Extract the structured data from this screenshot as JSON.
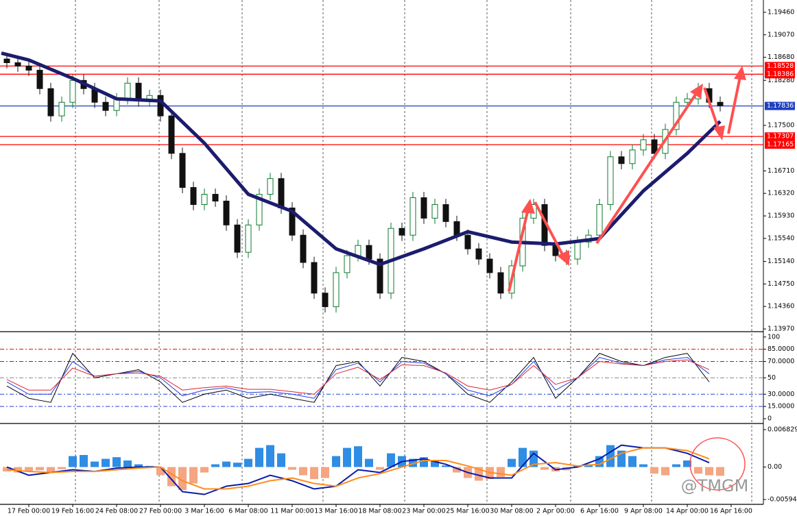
{
  "chart_data": [
    {
      "type": "candlestick",
      "xlim": [
        -10.5,
        267.75
      ],
      "ylim": [
        1.13935,
        1.19673
      ],
      "yticks": [
        {
          "value": 1.1946,
          "label": "1.19460"
        },
        {
          "value": 1.1907,
          "label": "1.19070"
        },
        {
          "value": 1.1868,
          "label": "1.18680"
        },
        {
          "value": 1.1828,
          "label": "1.18280"
        },
        {
          "value": 1.175,
          "label": "1.17500"
        },
        {
          "value": 1.1671,
          "label": "1.16710"
        },
        {
          "value": 1.1632,
          "label": "1.16320"
        },
        {
          "value": 1.1593,
          "label": "1.15930"
        },
        {
          "value": 1.1554,
          "label": "1.15540"
        },
        {
          "value": 1.1514,
          "label": "1.15140"
        },
        {
          "value": 1.1475,
          "label": "1.14750"
        },
        {
          "value": 1.1436,
          "label": "1.14360"
        },
        {
          "value": 1.1397,
          "label": "1.13970"
        }
      ],
      "up_color": "#0a7a2a",
      "down_color": "#111111",
      "x": [
        -8,
        -4,
        0,
        4,
        8,
        12,
        16,
        20,
        24,
        28,
        32,
        36,
        40,
        44,
        48,
        52,
        56,
        60,
        64,
        68,
        72,
        76,
        80,
        84,
        88,
        92,
        96,
        100,
        104,
        108,
        112,
        116,
        120,
        124,
        128,
        132,
        136,
        140,
        144,
        148,
        152,
        156,
        160,
        164,
        168,
        172,
        176,
        180,
        184,
        188,
        192,
        196,
        200,
        204,
        208,
        212,
        216,
        220,
        224,
        228,
        232,
        236,
        240,
        244,
        248,
        252
      ],
      "open": [
        1.1865,
        1.18586,
        1.18527,
        1.18456,
        1.18137,
        1.17664,
        1.179,
        1.18279,
        1.18137,
        1.179,
        1.17758,
        1.1796,
        1.18231,
        1.17924,
        1.18018,
        1.17664,
        1.17014,
        1.16423,
        1.16127,
        1.16305,
        1.16187,
        1.15773,
        1.153,
        1.15773,
        1.16305,
        1.16577,
        1.16068,
        1.15596,
        1.15123,
        1.14591,
        1.14355,
        1.14946,
        1.15241,
        1.15418,
        1.15182,
        1.14591,
        1.15714,
        1.15596,
        1.16246,
        1.15891,
        1.16127,
        1.15832,
        1.15596,
        1.15359,
        1.15182,
        1.14946,
        1.14591,
        1.15064,
        1.15891,
        1.16127,
        1.15418,
        1.15241,
        1.15182,
        1.15477,
        1.15596,
        1.16127,
        1.16955,
        1.16837,
        1.17073,
        1.1725,
        1.17014,
        1.17428,
        1.179,
        1.1796,
        1.18137,
        1.179
      ],
      "high": [
        1.1875,
        1.18686,
        1.18627,
        1.18556,
        1.18237,
        1.18,
        1.18379,
        1.18379,
        1.18237,
        1.18,
        1.1806,
        1.18331,
        1.18331,
        1.18118,
        1.18118,
        1.17764,
        1.17114,
        1.16523,
        1.16405,
        1.16405,
        1.16287,
        1.15873,
        1.15873,
        1.16405,
        1.16677,
        1.16677,
        1.16168,
        1.15696,
        1.15223,
        1.14691,
        1.15046,
        1.15341,
        1.15518,
        1.15518,
        1.15282,
        1.15814,
        1.15814,
        1.16346,
        1.16346,
        1.16227,
        1.16227,
        1.15932,
        1.15696,
        1.15459,
        1.15282,
        1.15046,
        1.15164,
        1.15991,
        1.16227,
        1.16227,
        1.15518,
        1.15341,
        1.15577,
        1.15696,
        1.16227,
        1.17055,
        1.17055,
        1.17173,
        1.1735,
        1.1735,
        1.17528,
        1.18,
        1.1806,
        1.18237,
        1.18237,
        1.18
      ],
      "low": [
        1.18486,
        1.18427,
        1.18356,
        1.18037,
        1.17564,
        1.17564,
        1.178,
        1.18037,
        1.178,
        1.17658,
        1.17658,
        1.1786,
        1.17824,
        1.17824,
        1.17564,
        1.16914,
        1.16323,
        1.16027,
        1.16027,
        1.16087,
        1.15673,
        1.152,
        1.152,
        1.15673,
        1.16205,
        1.15968,
        1.15496,
        1.15023,
        1.14491,
        1.14255,
        1.14255,
        1.14846,
        1.15141,
        1.15082,
        1.14491,
        1.14491,
        1.15496,
        1.15496,
        1.15791,
        1.15791,
        1.15732,
        1.15496,
        1.15259,
        1.15082,
        1.14846,
        1.14491,
        1.14491,
        1.14964,
        1.15791,
        1.15318,
        1.15141,
        1.15082,
        1.15082,
        1.15377,
        1.15496,
        1.16027,
        1.16737,
        1.16737,
        1.16973,
        1.16914,
        1.16914,
        1.17328,
        1.178,
        1.1786,
        1.178,
        1.17741
      ],
      "close": [
        1.18586,
        1.18527,
        1.18456,
        1.18137,
        1.17664,
        1.179,
        1.18279,
        1.18137,
        1.179,
        1.17758,
        1.1796,
        1.18231,
        1.17924,
        1.18018,
        1.17664,
        1.17014,
        1.16423,
        1.16127,
        1.16305,
        1.16187,
        1.15773,
        1.153,
        1.15773,
        1.16305,
        1.16577,
        1.16068,
        1.15596,
        1.15123,
        1.14591,
        1.14355,
        1.14946,
        1.15241,
        1.15418,
        1.15182,
        1.14591,
        1.15714,
        1.15596,
        1.16246,
        1.15891,
        1.16127,
        1.15832,
        1.15596,
        1.15359,
        1.15182,
        1.14946,
        1.14591,
        1.15064,
        1.15891,
        1.16127,
        1.15418,
        1.15241,
        1.15182,
        1.15477,
        1.15596,
        1.16127,
        1.16955,
        1.16837,
        1.17073,
        1.1725,
        1.17014,
        1.17428,
        1.179,
        1.1796,
        1.18137,
        1.179,
        1.17841
      ],
      "series": [
        {
          "color": "#1c1c6e",
          "x": [
            -10,
            0,
            16,
            32,
            48,
            64,
            80,
            96,
            112,
            128,
            144,
            160,
            176,
            192,
            208,
            224,
            240,
            252
          ],
          "values": [
            1.18751,
            1.18633,
            1.18314,
            1.1796,
            1.17924,
            1.17191,
            1.16305,
            1.16009,
            1.15359,
            1.15088,
            1.15359,
            1.15655,
            1.15477,
            1.15442,
            1.15537,
            1.16364,
            1.17014,
            1.17569
          ]
        }
      ],
      "level_labels": true,
      "levels": [
        {
          "value": 1.18528,
          "color": "#ff0000"
        },
        {
          "value": 1.18386,
          "color": "#ff0000"
        },
        {
          "value": 1.17836,
          "color": "#1f3fbf"
        },
        {
          "value": 1.17307,
          "color": "#ff0000"
        },
        {
          "value": 1.17165,
          "color": "#ff0000"
        }
      ]
    },
    {
      "type": "line",
      "xlim": [
        -10.5,
        267.75
      ],
      "ylim": [
        -5,
        104
      ],
      "yticks": [
        100,
        {
          "value": 85,
          "label": "85.0000"
        },
        {
          "value": 70,
          "label": "70.0000"
        },
        50,
        {
          "value": 30,
          "label": "30.0000"
        },
        {
          "value": 15,
          "label": "15.0000"
        },
        0
      ],
      "x": [
        -8,
        0,
        8,
        16,
        24,
        32,
        40,
        48,
        56,
        64,
        72,
        80,
        88,
        96,
        104,
        112,
        120,
        128,
        136,
        144,
        152,
        160,
        168,
        176,
        184,
        192,
        200,
        208,
        216,
        224,
        232,
        240,
        248
      ],
      "series": [
        {
          "color": "#000000",
          "values": [
            40,
            25,
            20,
            80,
            50,
            55,
            60,
            45,
            20,
            30,
            35,
            25,
            30,
            25,
            20,
            65,
            70,
            40,
            75,
            70,
            55,
            30,
            20,
            45,
            75,
            25,
            50,
            80,
            70,
            65,
            75,
            80,
            45
          ]
        },
        {
          "color": "#1f3fdf",
          "values": [
            45,
            30,
            30,
            70,
            52,
            55,
            58,
            50,
            28,
            35,
            38,
            32,
            33,
            30,
            25,
            60,
            68,
            45,
            70,
            68,
            55,
            35,
            28,
            42,
            70,
            35,
            50,
            75,
            68,
            65,
            72,
            75,
            55
          ]
        },
        {
          "color": "#e0202a",
          "values": [
            48,
            35,
            35,
            62,
            52,
            55,
            56,
            52,
            35,
            38,
            40,
            36,
            36,
            33,
            30,
            55,
            63,
            48,
            66,
            65,
            56,
            40,
            35,
            42,
            65,
            42,
            50,
            70,
            67,
            65,
            70,
            72,
            60
          ]
        }
      ],
      "level_labels": false,
      "levels": [
        {
          "value": 85,
          "color": "#e00000"
        },
        {
          "value": 70,
          "color": "#e00000"
        },
        {
          "value": 50,
          "color": "#888888"
        },
        {
          "value": 30,
          "color": "#1f3fdf"
        },
        {
          "value": 15,
          "color": "#1f3fdf"
        }
      ]
    },
    {
      "type": "bar",
      "xlim": [
        -10.5,
        267.75
      ],
      "ylim": [
        -0.00669,
        0.00758
      ],
      "yticks": [
        0.0068298,
        {
          "value": 0,
          "label": "0.00"
        },
        {
          "value": -0.00594,
          "label": "-0.0059400"
        }
      ],
      "xticks": [
        {
          "value": 0,
          "label": "17 Feb 00:00"
        },
        {
          "value": 16,
          "label": "19 Feb 16:00"
        },
        {
          "value": 32,
          "label": "24 Feb 08:00"
        },
        {
          "value": 48,
          "label": "27 Feb 00:00"
        },
        {
          "value": 64,
          "label": "3 Mar 16:00"
        },
        {
          "value": 80,
          "label": "6 Mar 08:00"
        },
        {
          "value": 96,
          "label": "11 Mar 00:00"
        },
        {
          "value": 112,
          "label": "13 Mar 16:00"
        },
        {
          "value": 128,
          "label": "18 Mar 08:00"
        },
        {
          "value": 144,
          "label": "23 Mar 00:00"
        },
        {
          "value": 160,
          "label": "25 Mar 16:00"
        },
        {
          "value": 176,
          "label": "30 Mar 08:00"
        },
        {
          "value": 192,
          "label": "2 Apr 00:00"
        },
        {
          "value": 208,
          "label": "6 Apr 16:00"
        },
        {
          "value": 224,
          "label": "9 Apr 08:00"
        },
        {
          "value": 240,
          "label": "14 Apr 00:00"
        },
        {
          "value": 256,
          "label": "16 Apr 16:00"
        }
      ],
      "color_pos": "#2f8de4",
      "color_neg": "#f4a582",
      "x": [
        -8,
        -4,
        0,
        4,
        8,
        12,
        16,
        20,
        24,
        28,
        32,
        36,
        40,
        44,
        48,
        52,
        56,
        60,
        64,
        68,
        72,
        76,
        80,
        84,
        88,
        92,
        96,
        100,
        104,
        108,
        112,
        116,
        120,
        124,
        128,
        132,
        136,
        140,
        144,
        148,
        152,
        156,
        160,
        164,
        168,
        172,
        176,
        180,
        184,
        188,
        192,
        196,
        200,
        204,
        208,
        212,
        216,
        220,
        224,
        228,
        232,
        236,
        240,
        244,
        248,
        252
      ],
      "values": [
        -0.0008,
        -0.001,
        -0.0008,
        -0.0006,
        -0.001,
        -0.0004,
        0.002,
        0.0022,
        0.001,
        0.0015,
        0.0018,
        0.0012,
        0.0005,
        0.0002,
        -0.0015,
        -0.0035,
        -0.0042,
        -0.003,
        -0.001,
        0.0005,
        0.001,
        0.0008,
        0.0015,
        0.0035,
        0.004,
        0.0025,
        -0.0005,
        -0.0015,
        -0.0022,
        -0.002,
        0.002,
        0.0035,
        0.0038,
        0.0015,
        -0.0005,
        0.0025,
        0.002,
        0.0015,
        0.0018,
        0.0012,
        0.0003,
        -0.001,
        -0.002,
        -0.0025,
        -0.0022,
        -0.0018,
        0.0015,
        0.0035,
        0.003,
        -0.0005,
        -0.0008,
        -0.0006,
        0.0002,
        0.0005,
        0.002,
        0.004,
        0.003,
        0.002,
        0.0005,
        -0.0012,
        -0.0015,
        0.0005,
        0.0012,
        -0.0012,
        -0.0015,
        -0.0016
      ],
      "series": [
        {
          "color": "#0a1aa8",
          "x": [
            -8,
            0,
            8,
            16,
            24,
            32,
            40,
            48,
            56,
            64,
            72,
            80,
            88,
            96,
            104,
            112,
            120,
            128,
            136,
            144,
            152,
            160,
            168,
            176,
            184,
            192,
            200,
            208,
            216,
            224,
            232,
            240,
            248
          ],
          "values": [
            0,
            -0.0015,
            -0.001,
            -0.0005,
            -0.0008,
            -0.0002,
            0,
            0,
            -0.0045,
            -0.005,
            -0.0035,
            -0.003,
            -0.0015,
            -0.0025,
            -0.004,
            -0.0035,
            -0.0005,
            -0.001,
            0.001,
            0.0015,
            0.0005,
            -0.001,
            -0.002,
            -0.002,
            0.0025,
            -0.0005,
            0,
            0.0015,
            0.004,
            0.0035,
            0.0035,
            0.0025,
            0.0008
          ]
        },
        {
          "color": "#ff8c1a",
          "x": [
            -8,
            0,
            8,
            16,
            24,
            32,
            40,
            48,
            56,
            64,
            72,
            80,
            88,
            96,
            104,
            112,
            120,
            128,
            136,
            144,
            152,
            160,
            168,
            176,
            184,
            192,
            200,
            208,
            216,
            224,
            232,
            240,
            248
          ],
          "values": [
            -0.0005,
            -0.0008,
            -0.001,
            -0.0008,
            -0.0008,
            -0.0005,
            -0.0002,
            0,
            -0.0025,
            -0.004,
            -0.004,
            -0.0035,
            -0.0025,
            -0.002,
            -0.003,
            -0.0035,
            -0.002,
            -0.0012,
            0,
            0.0012,
            0.0012,
            0.0002,
            -0.001,
            -0.0015,
            0.0005,
            0.0008,
            0.0002,
            0.0005,
            0.0025,
            0.0035,
            0.0035,
            0.003,
            0.0015
          ]
        }
      ],
      "level_labels": false,
      "levels": []
    }
  ],
  "watermark": "@TMGM"
}
